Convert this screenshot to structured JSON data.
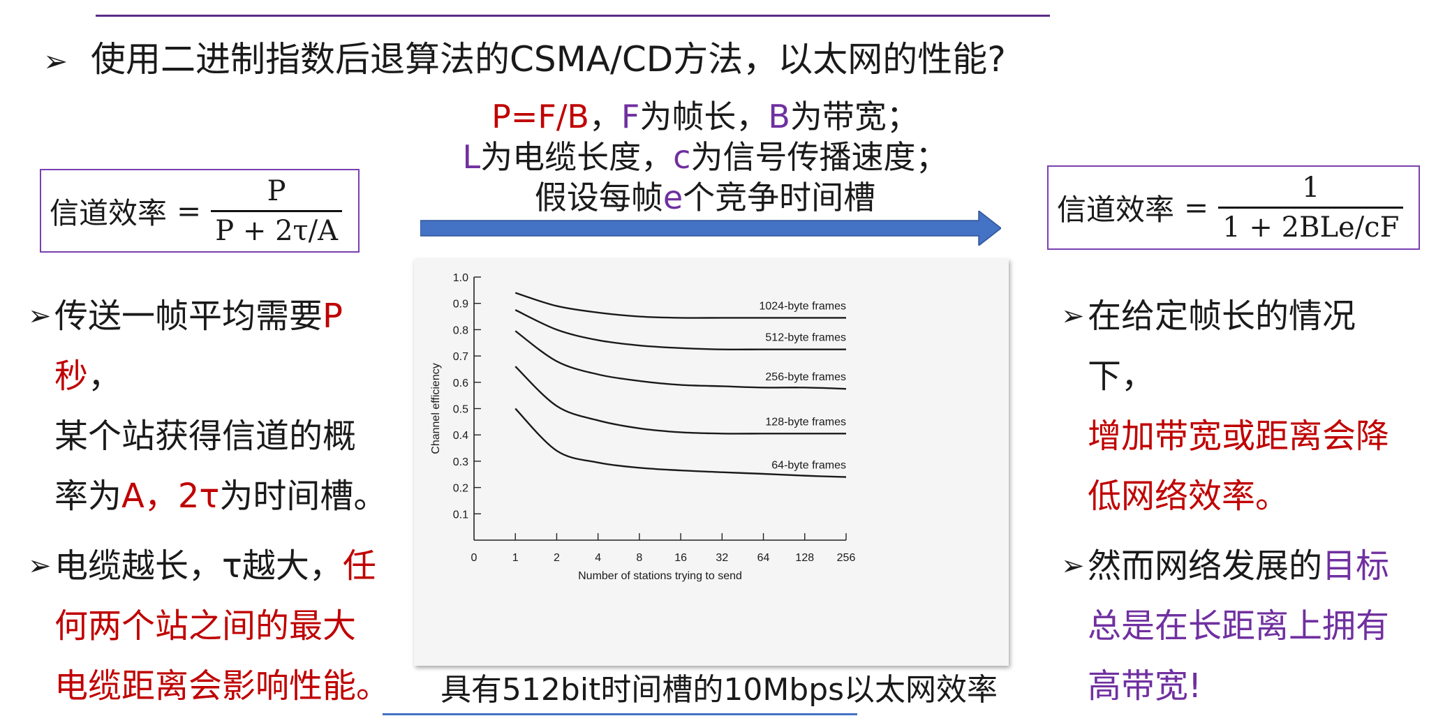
{
  "title": {
    "bullet": "➢",
    "text": "使用二进制指数后退算法的CSMA/CD方法，以太网的性能?"
  },
  "formula_left": {
    "lhs": "信道效率",
    "eq": "=",
    "numerator": "P",
    "denominator": "P + 2τ/A"
  },
  "formula_right": {
    "lhs": "信道效率",
    "eq": "=",
    "numerator": "1",
    "denominator": "1 + 2BLe/cF"
  },
  "center_text": {
    "line1": [
      {
        "text": "P=F/B",
        "color": "red"
      },
      {
        "text": "，",
        "color": "black"
      },
      {
        "text": "F",
        "color": "purple"
      },
      {
        "text": "为帧长，",
        "color": "black"
      },
      {
        "text": "B",
        "color": "purple"
      },
      {
        "text": "为带宽；",
        "color": "black"
      }
    ],
    "line2": [
      {
        "text": "L",
        "color": "purple"
      },
      {
        "text": "为电缆长度，",
        "color": "black"
      },
      {
        "text": "c",
        "color": "purple"
      },
      {
        "text": "为信号传播速度；",
        "color": "black"
      }
    ],
    "line3": [
      {
        "text": "假设每帧",
        "color": "black"
      },
      {
        "text": "e",
        "color": "purple"
      },
      {
        "text": "个竞争时间槽",
        "color": "black"
      }
    ]
  },
  "left_bullets": [
    {
      "mark": "➢",
      "lines": [
        [
          {
            "text": "传送一帧平均需要",
            "color": "black"
          },
          {
            "text": "P秒",
            "color": "red"
          },
          {
            "text": "，",
            "color": "black"
          }
        ],
        [
          {
            "text": "某个站获得信道的概",
            "color": "black"
          }
        ],
        [
          {
            "text": "率为",
            "color": "black"
          },
          {
            "text": "A",
            "color": "red"
          },
          {
            "text": "，",
            "color": "red"
          },
          {
            "text": "2τ",
            "color": "red"
          },
          {
            "text": "为时间槽。",
            "color": "black"
          }
        ]
      ]
    },
    {
      "mark": "➢",
      "lines": [
        [
          {
            "text": "电缆越长，τ越大，",
            "color": "black"
          },
          {
            "text": "任",
            "color": "red"
          }
        ],
        [
          {
            "text": "何两个站之间的最大",
            "color": "red"
          }
        ],
        [
          {
            "text": "电缆距离会影响性能。",
            "color": "red"
          }
        ]
      ]
    }
  ],
  "right_bullets": [
    {
      "mark": "➢",
      "lines": [
        [
          {
            "text": "在给定帧长的情况下，",
            "color": "black"
          }
        ],
        [
          {
            "text": "增加带宽或距离会降",
            "color": "red"
          }
        ],
        [
          {
            "text": "低网络效率。",
            "color": "red"
          }
        ]
      ]
    },
    {
      "mark": "➢",
      "lines": [
        [
          {
            "text": "然而网络发展的",
            "color": "black"
          },
          {
            "text": "目标",
            "color": "purple"
          }
        ],
        [
          {
            "text": "总是在长距离上拥有",
            "color": "purple"
          }
        ],
        [
          {
            "text": "高带宽!",
            "color": "purple"
          }
        ]
      ]
    }
  ],
  "caption": "具有512bit时间槽的10Mbps以太网效率",
  "colors": {
    "red": "#c00000",
    "purple": "#7030a0",
    "black": "#1a1a1a",
    "arrow": "#4472c4",
    "rule": "#5b2c86"
  },
  "chart_data": {
    "type": "line",
    "xlabel": "Number of stations trying to send",
    "ylabel": "Channel efficiency",
    "x_ticks": [
      "0",
      "1",
      "2",
      "4",
      "8",
      "16",
      "32",
      "64",
      "128",
      "256"
    ],
    "y_ticks": [
      "0.1",
      "0.2",
      "0.3",
      "0.4",
      "0.5",
      "0.6",
      "0.7",
      "0.8",
      "0.9",
      "1.0"
    ],
    "ylim": [
      0,
      1.0
    ],
    "x": [
      1,
      2,
      4,
      8,
      16,
      32,
      64,
      128,
      256
    ],
    "series": [
      {
        "name": "1024-byte frames",
        "values": [
          0.94,
          0.89,
          0.865,
          0.85,
          0.845,
          0.845,
          0.845,
          0.845,
          0.845
        ]
      },
      {
        "name": "512-byte frames",
        "values": [
          0.875,
          0.8,
          0.76,
          0.74,
          0.73,
          0.725,
          0.725,
          0.725,
          0.725
        ]
      },
      {
        "name": "256-byte frames",
        "values": [
          0.795,
          0.68,
          0.63,
          0.605,
          0.59,
          0.585,
          0.58,
          0.58,
          0.575
        ]
      },
      {
        "name": "128-byte frames",
        "values": [
          0.66,
          0.51,
          0.455,
          0.425,
          0.41,
          0.405,
          0.405,
          0.405,
          0.405
        ]
      },
      {
        "name": "64-byte frames",
        "values": [
          0.5,
          0.34,
          0.295,
          0.275,
          0.265,
          0.258,
          0.252,
          0.245,
          0.24
        ]
      }
    ]
  }
}
